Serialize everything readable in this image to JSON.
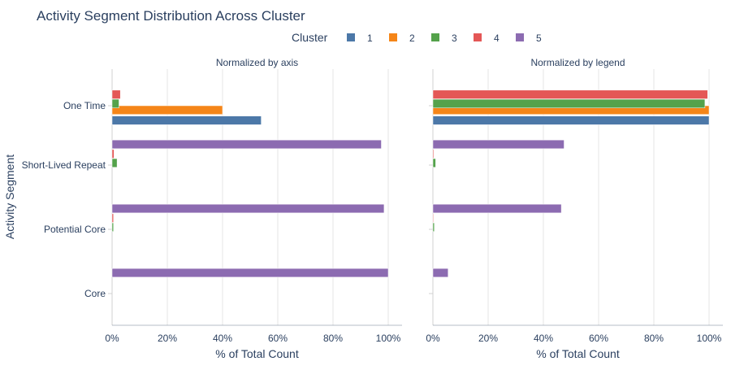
{
  "chart_data": {
    "type": "bar",
    "orientation": "horizontal",
    "title": "Activity Segment Distribution Across Cluster",
    "ylabel": "Activity Segment",
    "legend": {
      "title": "Cluster",
      "placement": "top-center",
      "entries": [
        {
          "name": "1",
          "color": "#4c78a8"
        },
        {
          "name": "2",
          "color": "#f58518"
        },
        {
          "name": "3",
          "color": "#54a24b"
        },
        {
          "name": "4",
          "color": "#e45756"
        },
        {
          "name": "5",
          "color": "#8c6bb1"
        }
      ]
    },
    "categories": [
      "One Time",
      "Short-Lived Repeat",
      "Potential Core",
      "Core"
    ],
    "panels": [
      {
        "title": "Normalized by axis",
        "xlabel": "% of Total Count",
        "xlim": [
          0,
          105
        ],
        "xticks": [
          0,
          20,
          40,
          60,
          80,
          100
        ],
        "xtick_labels": [
          "0%",
          "20%",
          "40%",
          "60%",
          "80%",
          "100%"
        ],
        "series": [
          {
            "name": "1",
            "values": [
              54,
              0,
              0,
              0
            ]
          },
          {
            "name": "2",
            "values": [
              40,
              0,
              0,
              0
            ]
          },
          {
            "name": "3",
            "values": [
              2.5,
              1.8,
              0.5,
              0
            ]
          },
          {
            "name": "4",
            "values": [
              3,
              0.7,
              0.5,
              0
            ]
          },
          {
            "name": "5",
            "values": [
              0,
              97.5,
              98.5,
              100
            ]
          }
        ]
      },
      {
        "title": "Normalized by legend",
        "xlabel": "% of Total Count",
        "xlim": [
          0,
          105
        ],
        "xticks": [
          0,
          20,
          40,
          60,
          80,
          100
        ],
        "xtick_labels": [
          "0%",
          "20%",
          "40%",
          "60%",
          "80%",
          "100%"
        ],
        "series": [
          {
            "name": "1",
            "values": [
              100,
              0,
              0,
              0
            ]
          },
          {
            "name": "2",
            "values": [
              100,
              0,
              0,
              0
            ]
          },
          {
            "name": "3",
            "values": [
              98.5,
              1,
              0.5,
              0
            ]
          },
          {
            "name": "4",
            "values": [
              99.5,
              0.3,
              0.2,
              0
            ]
          },
          {
            "name": "5",
            "values": [
              0,
              47.5,
              46.5,
              5.5
            ]
          }
        ]
      }
    ]
  }
}
